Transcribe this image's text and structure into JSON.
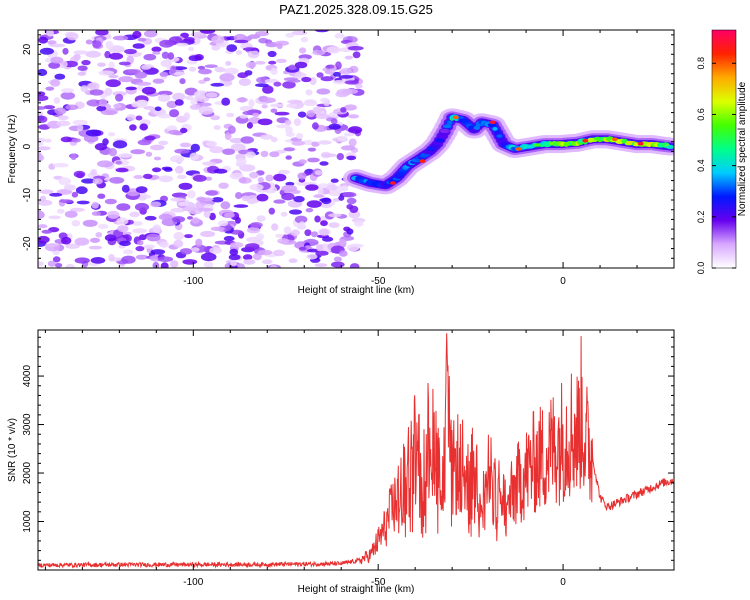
{
  "title": "PAZ1.2025.328.09.15.G25",
  "chart_data": [
    {
      "type": "heatmap",
      "xlabel": "Height of straight line (km)",
      "ylabel": "Frequency (Hz)",
      "xlim": [
        -142,
        30
      ],
      "ylim": [
        -25,
        24
      ],
      "xticks": [
        -100,
        -50,
        0
      ],
      "yticks": [
        20,
        10,
        0,
        -10,
        -20
      ],
      "colorbar": {
        "label": "Normalized spectral amplitude",
        "range": [
          0,
          0.93
        ],
        "ticks": [
          0.0,
          0.2,
          0.4,
          0.6,
          0.8
        ]
      },
      "noise_region": {
        "x_range": [
          -142,
          -55
        ],
        "freq_range": [
          -25,
          24
        ]
      },
      "signal_track": [
        {
          "x": -56,
          "f": -6.5,
          "amp": 0.35
        },
        {
          "x": -52,
          "f": -7.5,
          "amp": 0.3
        },
        {
          "x": -48,
          "f": -8.0,
          "amp": 0.28
        },
        {
          "x": -45,
          "f": -6.5,
          "amp": 0.3
        },
        {
          "x": -42,
          "f": -4.0,
          "amp": 0.32
        },
        {
          "x": -39,
          "f": -2.5,
          "amp": 0.3
        },
        {
          "x": -36,
          "f": -1.0,
          "amp": 0.28
        },
        {
          "x": -34,
          "f": 0.5,
          "amp": 0.25
        },
        {
          "x": -32,
          "f": 3.0,
          "amp": 0.22
        },
        {
          "x": -30,
          "f": 6.0,
          "amp": 0.45
        },
        {
          "x": -27,
          "f": 5.5,
          "amp": 0.35
        },
        {
          "x": -24,
          "f": 3.5,
          "amp": 0.28
        },
        {
          "x": -22,
          "f": 5.0,
          "amp": 0.32
        },
        {
          "x": -19,
          "f": 4.5,
          "amp": 0.35
        },
        {
          "x": -16,
          "f": 0.5,
          "amp": 0.25
        },
        {
          "x": -13,
          "f": -0.5,
          "amp": 0.4
        },
        {
          "x": -9,
          "f": 0.0,
          "amp": 0.45
        },
        {
          "x": -5,
          "f": 0.5,
          "amp": 0.5
        },
        {
          "x": -1,
          "f": 0.5,
          "amp": 0.55
        },
        {
          "x": 4,
          "f": 0.8,
          "amp": 0.6
        },
        {
          "x": 8,
          "f": 1.5,
          "amp": 0.55
        },
        {
          "x": 12,
          "f": 1.5,
          "amp": 0.6
        },
        {
          "x": 16,
          "f": 1.0,
          "amp": 0.62
        },
        {
          "x": 20,
          "f": 0.5,
          "amp": 0.65
        },
        {
          "x": 24,
          "f": 0.5,
          "amp": 0.6
        },
        {
          "x": 29,
          "f": 0.0,
          "amp": 0.55
        }
      ]
    },
    {
      "type": "line",
      "xlabel": "Height of straight line (km)",
      "ylabel": "SNR (10 * v/v)",
      "xlim": [
        -142,
        30
      ],
      "ylim": [
        0,
        4950
      ],
      "xticks": [
        -100,
        -50,
        0
      ],
      "yticks": [
        1000,
        2000,
        3000,
        4000
      ],
      "series": [
        {
          "name": "SNR",
          "color": "#e83030",
          "x": [
            -142,
            -120,
            -100,
            -80,
            -60,
            -55,
            -52,
            -50,
            -48,
            -46,
            -44,
            -42,
            -40,
            -39,
            -38,
            -36,
            -34,
            -33,
            -32,
            -31.5,
            -31,
            -30,
            -28,
            -26,
            -24,
            -22,
            -20,
            -18,
            -16,
            -15,
            -14,
            -12,
            -10,
            -8,
            -6,
            -4,
            -2,
            0,
            2,
            4,
            5,
            6,
            8,
            10,
            12,
            15,
            18,
            21,
            24,
            27,
            30
          ],
          "y": [
            100,
            110,
            110,
            115,
            130,
            200,
            320,
            600,
            900,
            1300,
            1600,
            2000,
            2600,
            2200,
            2000,
            2900,
            2500,
            1800,
            2100,
            4950,
            3300,
            2000,
            2300,
            1800,
            2100,
            1600,
            1900,
            1700,
            1400,
            1300,
            1500,
            1800,
            2000,
            2200,
            2300,
            2400,
            2600,
            2700,
            2900,
            2800,
            3300,
            2700,
            2300,
            1500,
            1300,
            1400,
            1500,
            1600,
            1700,
            1800,
            1850
          ]
        }
      ]
    }
  ]
}
